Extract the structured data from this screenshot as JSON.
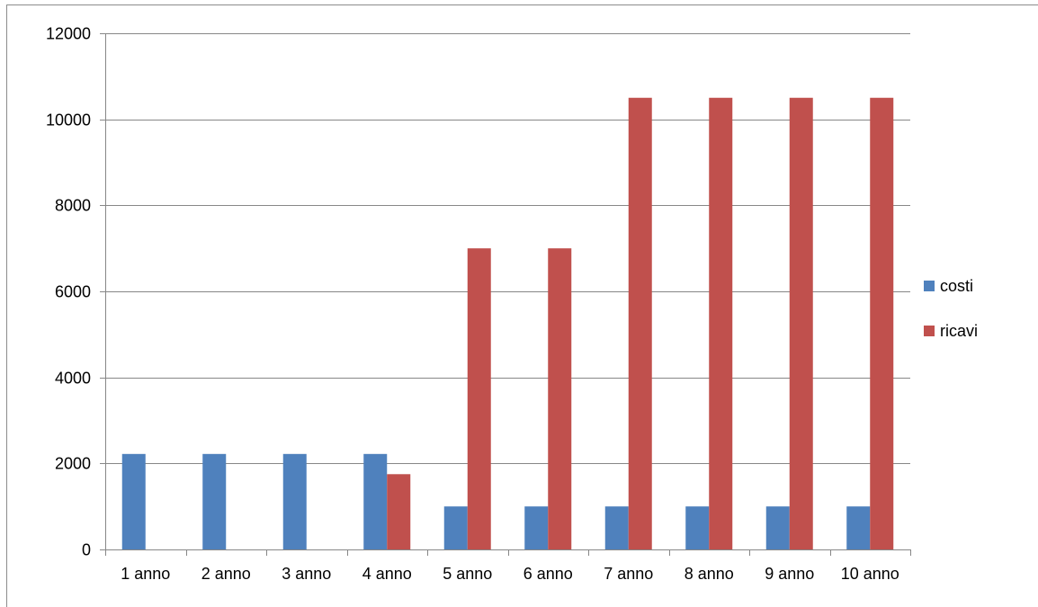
{
  "chart_data": {
    "type": "bar",
    "title": "",
    "xlabel": "",
    "ylabel": "",
    "categories": [
      "1 anno",
      "2 anno",
      "3 anno",
      "4 anno",
      "5 anno",
      "6 anno",
      "7 anno",
      "8 anno",
      "9 anno",
      "10 anno"
    ],
    "series": [
      {
        "name": "costi",
        "color": "#4f81bd",
        "values": [
          2220,
          2220,
          2220,
          2220,
          1000,
          1000,
          1000,
          1000,
          1000,
          1000
        ]
      },
      {
        "name": "ricavi",
        "color": "#c0504d",
        "values": [
          0,
          0,
          0,
          1750,
          7000,
          7000,
          10500,
          10500,
          10500,
          10500
        ]
      }
    ],
    "ylim": [
      0,
      12000
    ],
    "yticks": [
      0,
      2000,
      4000,
      6000,
      8000,
      10000,
      12000
    ],
    "grid": true,
    "legend_position": "right"
  }
}
